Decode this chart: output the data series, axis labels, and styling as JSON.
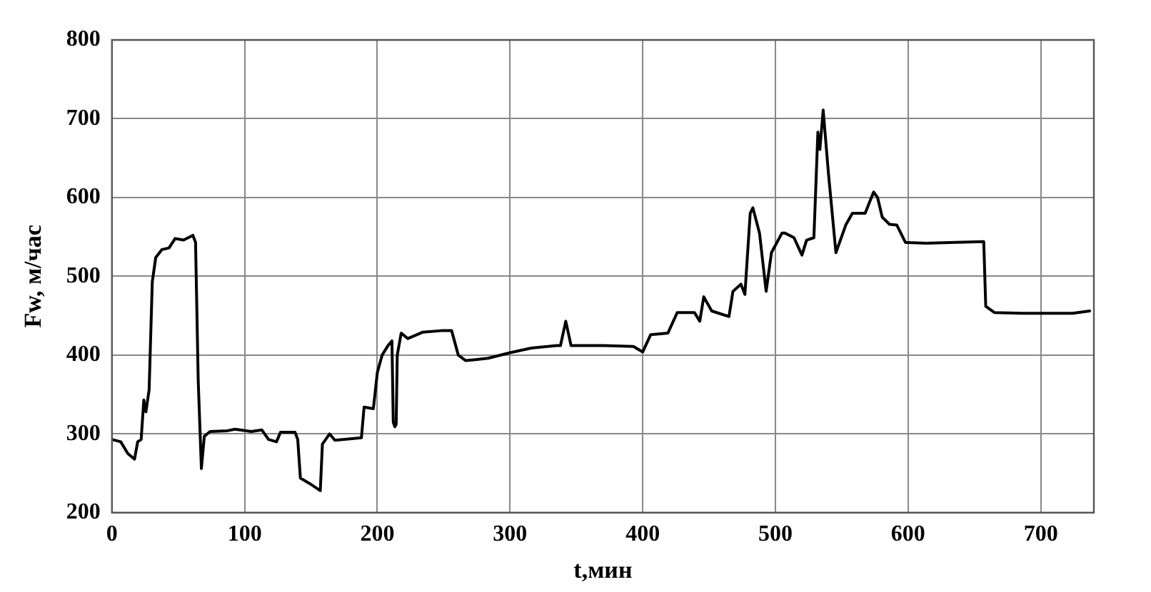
{
  "chart_data": {
    "type": "line",
    "xlabel": "t,мин",
    "ylabel": "Fw, м/час",
    "xlim": [
      0,
      740
    ],
    "xticks": [
      0,
      100,
      200,
      300,
      400,
      500,
      600,
      700
    ],
    "ylim": [
      200,
      800
    ],
    "yticks": [
      200,
      300,
      400,
      500,
      600,
      700,
      800
    ],
    "grid": true,
    "legend": false,
    "marker": "none",
    "line_style": "solid",
    "series": [
      {
        "color": "#000000",
        "x": [
          0,
          6.6,
          12,
          17,
          19.4,
          22,
          24,
          25.6,
          28,
          30.4,
          33,
          37.7,
          43,
          47.6,
          54,
          61,
          63,
          65,
          67.4,
          69.6,
          74,
          87,
          92.7,
          105,
          113,
          118,
          124,
          127,
          138,
          140,
          142,
          149,
          157,
          158.6,
          164,
          168,
          188,
          190,
          197,
          200,
          203.6,
          208,
          211,
          212,
          213.2,
          214.2,
          215,
          218,
          223,
          234,
          248,
          256,
          261,
          266.6,
          272.6,
          283.5,
          300,
          316,
          335,
          338,
          342,
          346,
          371,
          393,
          400,
          406,
          419,
          426,
          439,
          443,
          446,
          452,
          465,
          468,
          474,
          477,
          481,
          483,
          488,
          493,
          497,
          505,
          507,
          514,
          520,
          523.5,
          529,
          532,
          533.5,
          536,
          540,
          545.6,
          553,
          558,
          567.6,
          574,
          577,
          580.5,
          586,
          591.5,
          598,
          613.6,
          632,
          657,
          658.5,
          665,
          687,
          724,
          736.8
        ],
        "values": [
          293,
          290,
          275,
          268,
          290,
          293,
          343,
          328,
          356,
          493,
          524,
          534,
          536,
          548,
          546,
          552,
          543,
          368,
          256,
          297,
          303,
          304,
          306,
          303,
          305,
          293,
          290,
          302,
          302,
          293,
          244,
          237,
          228,
          287,
          300,
          292,
          295,
          334,
          332,
          378,
          400,
          412,
          418,
          315,
          309,
          312,
          400,
          428,
          421,
          429,
          431,
          431,
          400,
          393,
          394,
          396,
          403,
          409,
          412,
          412,
          443,
          412,
          412,
          411,
          404,
          426,
          428,
          454,
          454,
          443,
          474,
          456,
          449,
          481,
          490,
          477,
          580,
          587,
          555,
          481,
          530,
          555,
          555,
          549,
          527,
          546,
          549,
          683,
          661,
          711,
          630,
          530,
          565,
          580,
          580,
          607,
          600,
          575,
          566,
          565,
          543,
          542,
          543,
          544,
          462,
          454,
          453,
          453,
          456
        ]
      }
    ]
  }
}
